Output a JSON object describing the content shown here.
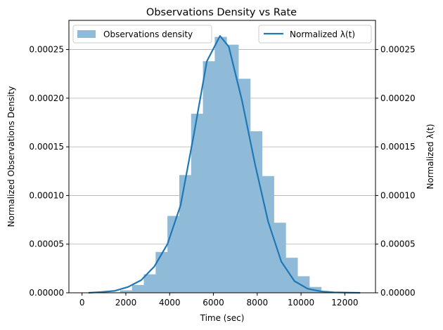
{
  "chart_data": {
    "type": "bar",
    "title": "Observations Density vs Rate",
    "xlabel": "Time (sec)",
    "ylabel_left": "Normalized Observations Density",
    "ylabel_right": "Normalized λ(t)",
    "xlim": [
      -600,
      13400
    ],
    "ylim": [
      0,
      0.00028
    ],
    "x_ticks": [
      0,
      2000,
      4000,
      6000,
      8000,
      10000,
      12000
    ],
    "x_tick_labels": [
      "0",
      "2000",
      "4000",
      "6000",
      "8000",
      "10000",
      "12000"
    ],
    "y_ticks": [
      0,
      5e-05,
      0.0001,
      0.00015,
      0.0002,
      0.00025
    ],
    "y_tick_labels": [
      "0.00000",
      "0.00005",
      "0.00010",
      "0.00015",
      "0.00020",
      "0.00025"
    ],
    "grid": "horizontal",
    "histogram": {
      "name": "Observations density",
      "color": "#8fbbd9",
      "bin_edges": [
        1200,
        1740,
        2280,
        2820,
        3360,
        3900,
        4440,
        4980,
        5520,
        6060,
        6600,
        7140,
        7680,
        8220,
        8760,
        9300,
        9840,
        10380,
        10920,
        11460
      ],
      "values": [
        5e-07,
        2.5e-06,
        8e-06,
        1.9e-05,
        4.2e-05,
        7.9e-05,
        0.000121,
        0.000184,
        0.000238,
        0.000263,
        0.000255,
        0.00022,
        0.000166,
        0.00012,
        7.2e-05,
        3.6e-05,
        1.7e-05,
        6e-06,
        1e-06
      ]
    },
    "series": [
      {
        "name": "Normalized λ(t)",
        "color": "#1f77b4",
        "x": [
          300,
          900,
          1500,
          2100,
          2700,
          3300,
          3900,
          4500,
          5100,
          5700,
          6300,
          6700,
          7300,
          7900,
          8500,
          9100,
          9700,
          10300,
          10900,
          11500,
          12100,
          12700
        ],
        "y": [
          0.0,
          8e-07,
          2e-06,
          6e-06,
          1.3e-05,
          2.7e-05,
          5e-05,
          9e-05,
          0.000162,
          0.000238,
          0.000264,
          0.000253,
          0.000198,
          0.000132,
          7.3e-05,
          3.2e-05,
          1.2e-05,
          4.2e-06,
          1.5e-06,
          5e-07,
          2e-07,
          0.0
        ]
      }
    ],
    "legend_left": {
      "placement": "top-left",
      "label": "Observations density"
    },
    "legend_right": {
      "placement": "top-right",
      "label": "Normalized λ(t)"
    }
  }
}
